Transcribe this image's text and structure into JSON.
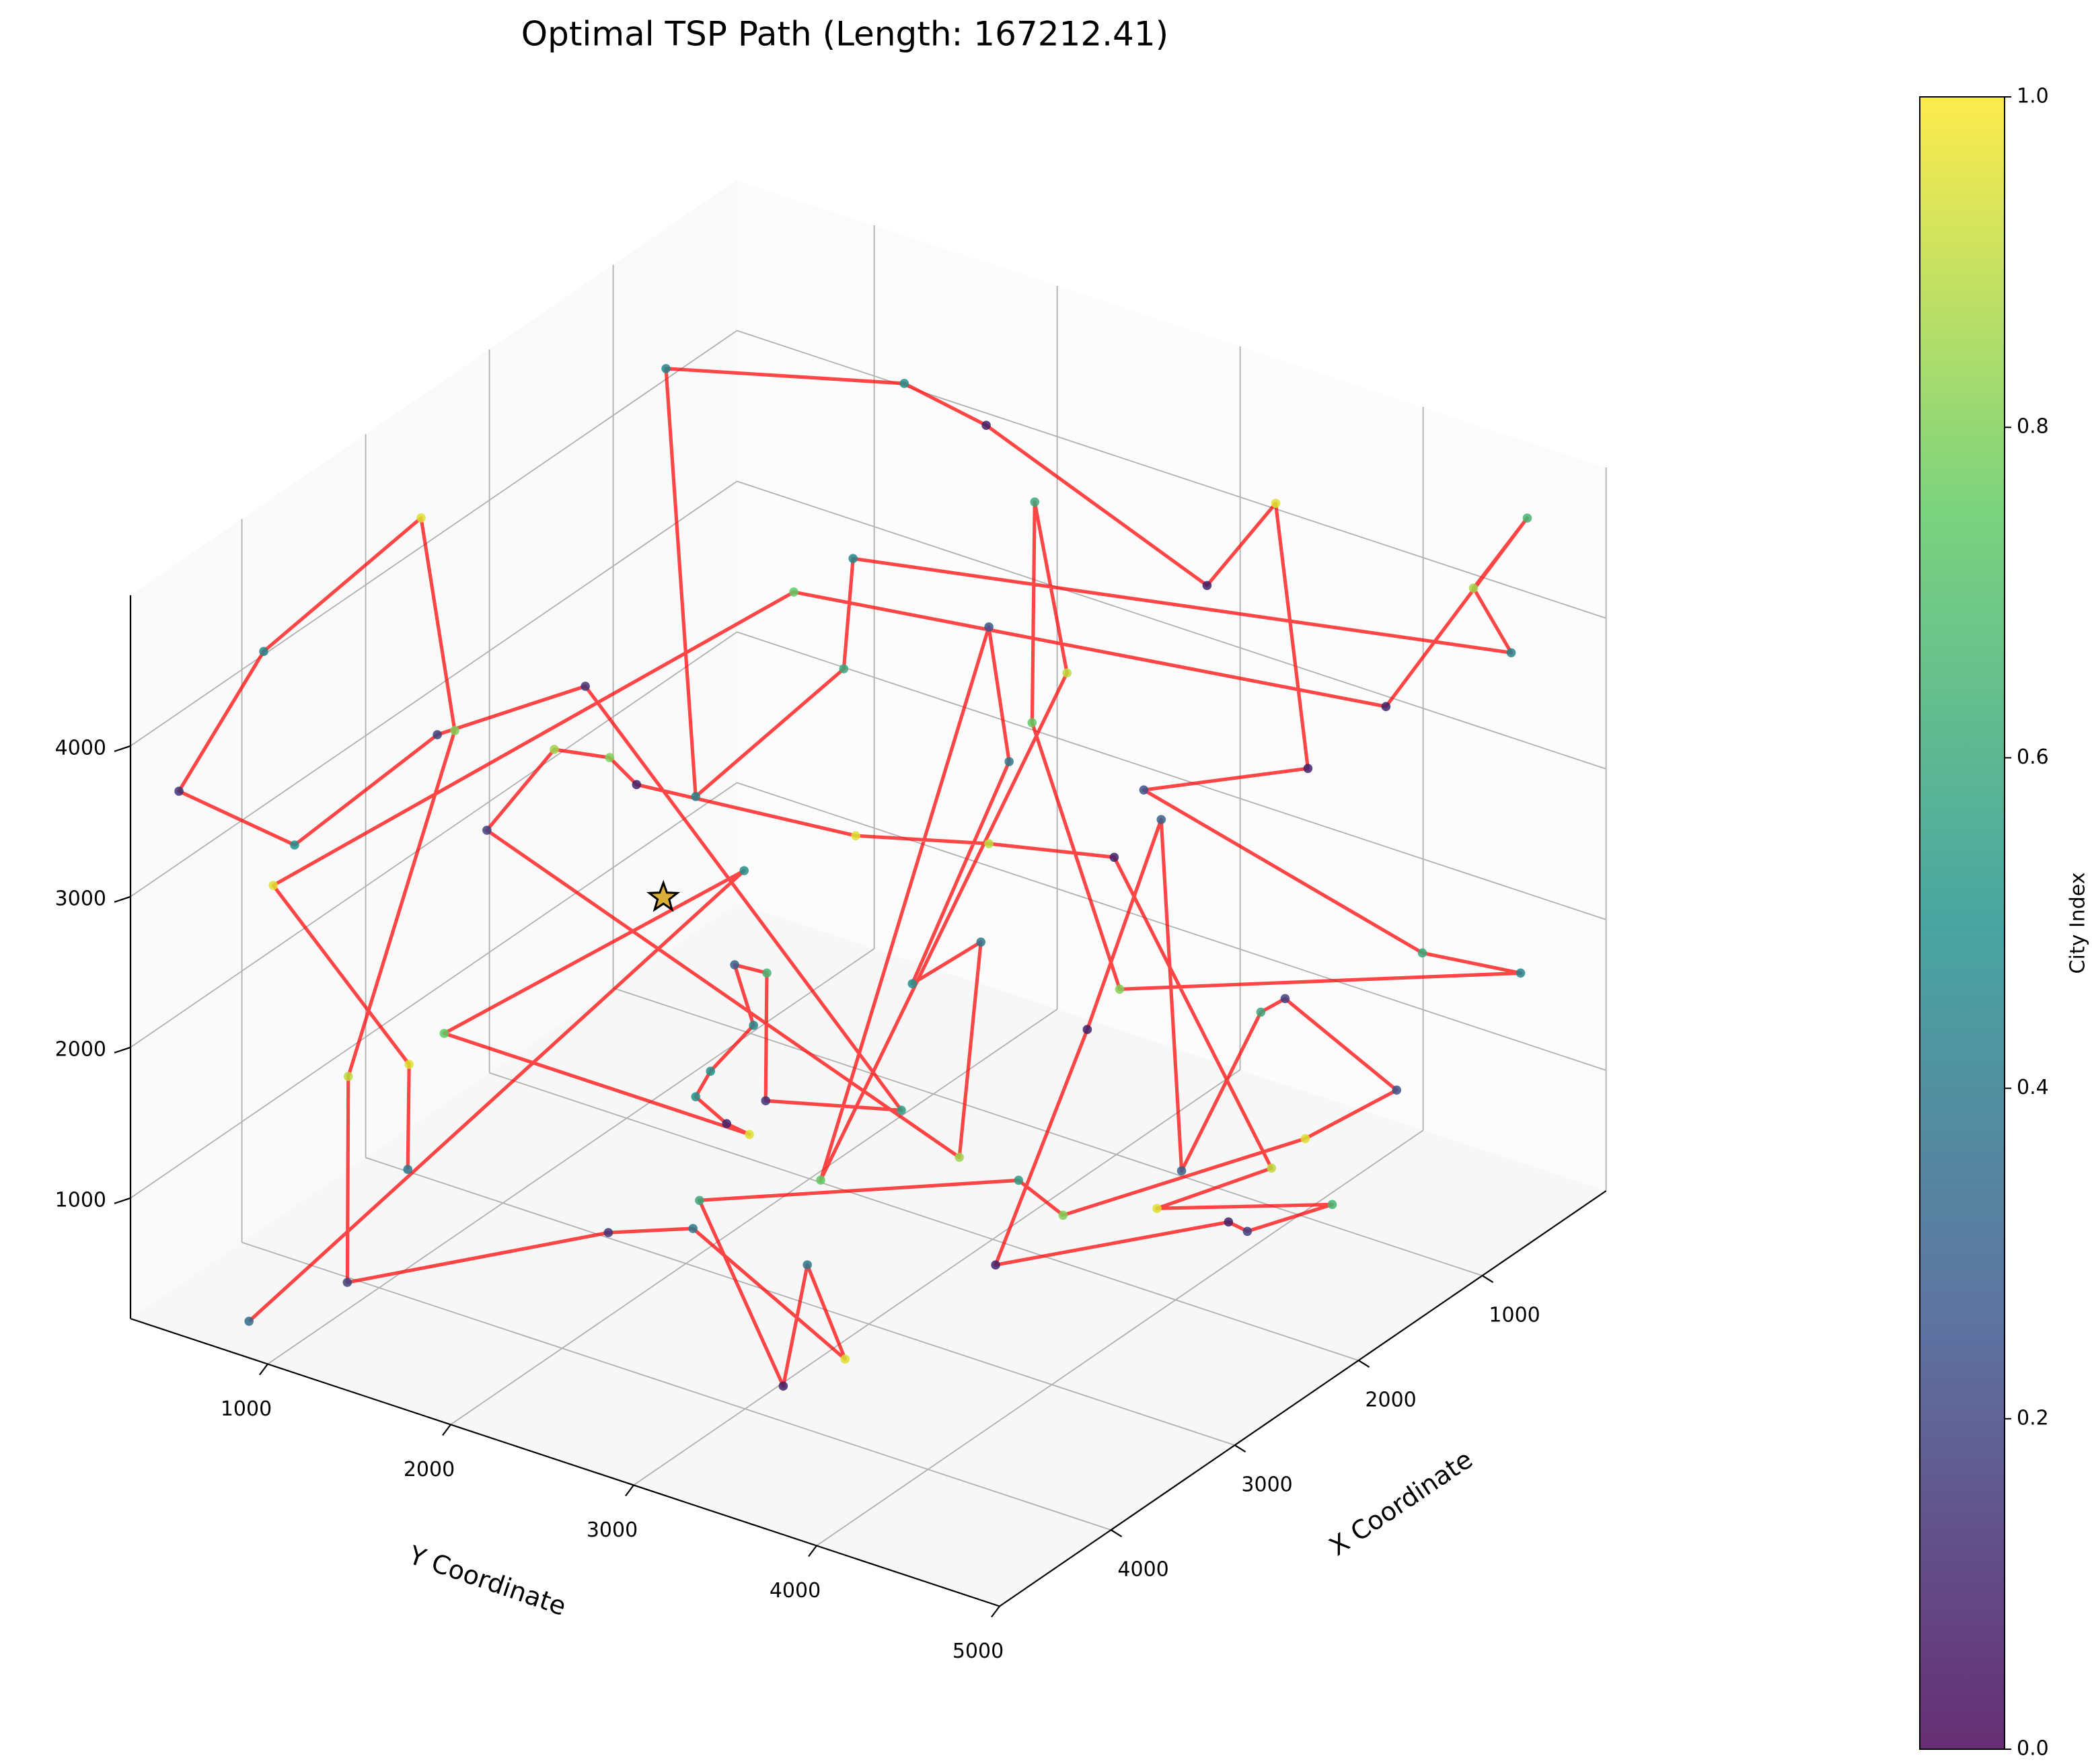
{
  "chart_data": {
    "type": "path3d",
    "title": "Optimal TSP Path (Length: 167212.41)",
    "xlabel": "X Coordinate",
    "ylabel": "Y Coordinate",
    "xlim": [
      0,
      4900
    ],
    "ylim": [
      250,
      5000
    ],
    "zlim": [
      200,
      5000
    ],
    "xticks": [
      1000,
      2000,
      3000,
      4000
    ],
    "yticks": [
      1000,
      2000,
      3000,
      4000,
      5000
    ],
    "zticks": [
      1000,
      2000,
      3000,
      4000
    ],
    "grid": true,
    "path_color": "#ff0000",
    "colorbar": {
      "label": "City Index",
      "lim": [
        0,
        1
      ],
      "ticks": [
        {
          "value": 0,
          "label": "0.0"
        },
        {
          "value": 0.2,
          "label": "0.2"
        },
        {
          "value": 0.4,
          "label": "0.4"
        },
        {
          "value": 0.6,
          "label": "0.6"
        },
        {
          "value": 0.8,
          "label": "0.8"
        },
        {
          "value": 1,
          "label": "1.0"
        }
      ]
    },
    "start": {
      "x": 2651,
      "y": 1641,
      "z": 2288
    },
    "points": {
      "x": [
        4609,
        2312,
        3576,
        2288,
        2384,
        2514,
        2452,
        2270,
        2350,
        2214,
        2219,
        1646,
        2980,
        3605,
        4207,
        4696,
        4338,
        3461,
        3531,
        3980,
        4041,
        2958,
        2703,
        3341,
        2691,
        3718,
        2498,
        1462,
        1623,
        423,
        486,
        410,
        393,
        958,
        549,
        861,
        2196,
        1241,
        1266,
        829,
        1322,
        700,
        750,
        1276,
        1839,
        2764,
        2878,
        3111,
        3395,
        1435,
        1311,
        1602,
        1191,
        1276,
        1986,
        947,
        1083,
        1094,
        725,
        571,
        504,
        623,
        425,
        403,
        356,
        1237,
        1120,
        1629,
        2514,
        1890,
        1850,
        564,
        539,
        551,
        479,
        2100,
        4298,
        3724,
        3730
      ],
      "y": [
        701,
        1853,
        1069,
        1866,
        1806,
        1725,
        1764,
        1876,
        1827,
        1911,
        1908,
        2262,
        1437,
        1051,
        678,
        377,
        598,
        865,
        1096,
        818,
        854,
        1548,
        1838,
        3101,
        2455,
        3018,
        1735,
        2778,
        3130,
        3642,
        4184,
        3523,
        3379,
        3328,
        2940,
        2747,
        3149,
        3776,
        3896,
        4064,
        3440,
        3645,
        2819,
        2490,
        2143,
        1571,
        1501,
        1356,
        1180,
        2436,
        2470,
        2292,
        2543,
        2490,
        2051,
        2694,
        2610,
        2603,
        2832,
        4919,
        4337,
        2895,
        3658,
        3467,
        3060,
        2449,
        1922,
        964,
        1725,
        2112,
        2136,
        4863,
        4640,
        4942,
        4121,
        1981,
        623,
        977,
        974
      ],
      "z": [
        200,
        2361,
        1677,
        602,
        704,
        923,
        1073,
        1320,
        1747,
        1650,
        804,
        561,
        3793,
        3668,
        3125,
        3636,
        4451,
        4951,
        3672,
        1518,
        200,
        200,
        200,
        200,
        200,
        200,
        230,
        200,
        200,
        239,
        814,
        1113,
        956,
        200,
        2145,
        850,
        200,
        200,
        200,
        200,
        200,
        200,
        1959,
        2213,
        2443,
        3073,
        3288,
        3415,
        2968,
        200,
        1572,
        1388,
        2731,
        3651,
        204,
        3243,
        4420,
        2959,
        1075,
        1934,
        1796,
        2365,
        2703,
        4373,
        3638,
        4951,
        4951,
        4951,
        2915,
        3567,
        4286,
        4033,
        4358,
        4951,
        3330,
        4142,
        2886,
        1518,
        823
      ],
      "c": [
        0.35,
        0.5,
        0.75,
        0.95,
        0.1,
        0.5,
        0.5,
        0.45,
        0.3,
        0.65,
        0.15,
        0.55,
        0.15,
        0.2,
        0.5,
        0.15,
        0.45,
        0.95,
        0.8,
        0.9,
        0.2,
        0.15,
        0.4,
        0.95,
        0.4,
        0.1,
        0.6,
        0.55,
        0.8,
        0.95,
        0.25,
        0.2,
        0.6,
        0.3,
        0.3,
        0.1,
        0.1,
        0.1,
        0.2,
        0.65,
        0.95,
        0.9,
        0.1,
        0.9,
        0.95,
        0.1,
        0.8,
        0.85,
        0.2,
        0.85,
        0.4,
        0.5,
        0.4,
        0.25,
        0.75,
        0.9,
        0.6,
        0.75,
        0.8,
        0.45,
        0.6,
        0.25,
        0.1,
        0.95,
        0.1,
        0.1,
        0.5,
        0.45,
        0.45,
        0.6,
        0.45,
        0.45,
        0.85,
        0.65,
        0.1,
        0.75,
        0.95,
        0.95,
        0.4
      ]
    }
  }
}
